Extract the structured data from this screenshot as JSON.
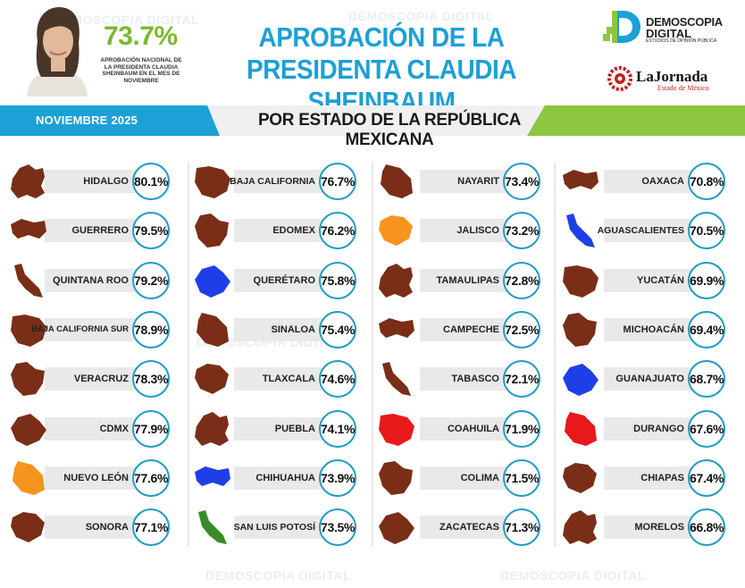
{
  "header": {
    "national_pct": "73.7%",
    "national_caption": "APROBACIÓN NACIONAL DE LA PRESIDENTA CLAUDIA SHEINBAUM EN EL MES DE NOVIEMBRE",
    "logo_line1": "DEMOSCOPIA",
    "logo_line2": "DIGITAL",
    "logo_line3": "ESTUDIOS DE OPINIÓN PÚBLICA",
    "logo2_name": "LaJornada",
    "logo2_sub": "Estado de México",
    "watermark": "DEMOSCOPIA DIGITAL"
  },
  "colors": {
    "title": "#1ca0d6",
    "accent_green": "#8cc63f",
    "accent_blue": "#1ca0d6",
    "circle_border": "#1e9ec2",
    "state_brown": "#7a2e17",
    "state_orange": "#f7941d",
    "state_blue": "#1f3fe6",
    "state_red": "#e8191b",
    "state_green": "#3a8a2a"
  },
  "chart_data": {
    "type": "table",
    "title": "APROBACIÓN DE LA PRESIDENTA CLAUDIA SHEINBAUM",
    "month": "NOVIEMBRE 2025",
    "subtitle": "POR ESTADO DE LA REPÚBLICA MEXICANA",
    "unit": "%",
    "columns": [
      [
        {
          "state": "HIDALGO",
          "label": "80.1%",
          "value": 80.1,
          "color": "brown"
        },
        {
          "state": "GUERRERO",
          "label": "79.5%",
          "value": 79.5,
          "color": "brown"
        },
        {
          "state": "QUINTANA ROO",
          "label": "79.2%",
          "value": 79.2,
          "color": "brown"
        },
        {
          "state": "BAJA CALIFORNIA SUR",
          "label": "78.9%",
          "value": 78.9,
          "color": "brown"
        },
        {
          "state": "VERACRUZ",
          "label": "78.3%",
          "value": 78.3,
          "color": "brown"
        },
        {
          "state": "CDMX",
          "label": "77.9%",
          "value": 77.9,
          "color": "brown"
        },
        {
          "state": "NUEVO LEÓN",
          "label": "77.6%",
          "value": 77.6,
          "color": "orange"
        },
        {
          "state": "SONORA",
          "label": "77.1%",
          "value": 77.1,
          "color": "brown"
        }
      ],
      [
        {
          "state": "BAJA CALIFORNIA",
          "label": "76.7%",
          "value": 76.7,
          "color": "brown"
        },
        {
          "state": "EDOMEX",
          "label": "76.2%",
          "value": 76.2,
          "color": "brown"
        },
        {
          "state": "QUERÉTARO",
          "label": "75.8%",
          "value": 75.8,
          "color": "blue"
        },
        {
          "state": "SINALOA",
          "label": "75.4%",
          "value": 75.4,
          "color": "brown"
        },
        {
          "state": "TLAXCALA",
          "label": "74.6%",
          "value": 74.6,
          "color": "brown"
        },
        {
          "state": "PUEBLA",
          "label": "74.1%",
          "value": 74.1,
          "color": "brown"
        },
        {
          "state": "CHIHUAHUA",
          "label": "73.9%",
          "value": 73.9,
          "color": "blue"
        },
        {
          "state": "SAN LUIS POTOSÍ",
          "label": "73.5%",
          "value": 73.5,
          "color": "green"
        }
      ],
      [
        {
          "state": "NAYARIT",
          "label": "73.4%",
          "value": 73.4,
          "color": "brown"
        },
        {
          "state": "JALISCO",
          "label": "73.2%",
          "value": 73.2,
          "color": "orange"
        },
        {
          "state": "TAMAULIPAS",
          "label": "72.8%",
          "value": 72.8,
          "color": "brown"
        },
        {
          "state": "CAMPECHE",
          "label": "72.5%",
          "value": 72.5,
          "color": "brown"
        },
        {
          "state": "TABASCO",
          "label": "72.1%",
          "value": 72.1,
          "color": "brown"
        },
        {
          "state": "COAHUILA",
          "label": "71.9%",
          "value": 71.9,
          "color": "red"
        },
        {
          "state": "COLIMA",
          "label": "71.5%",
          "value": 71.5,
          "color": "brown"
        },
        {
          "state": "ZACATECAS",
          "label": "71.3%",
          "value": 71.3,
          "color": "brown"
        }
      ],
      [
        {
          "state": "OAXACA",
          "label": "70.8%",
          "value": 70.8,
          "color": "brown"
        },
        {
          "state": "AGUASCALIENTES",
          "label": "70.5%",
          "value": 70.5,
          "color": "blue"
        },
        {
          "state": "YUCATÁN",
          "label": "69.9%",
          "value": 69.9,
          "color": "brown"
        },
        {
          "state": "MICHOACÁN",
          "label": "69.4%",
          "value": 69.4,
          "color": "brown"
        },
        {
          "state": "GUANAJUATO",
          "label": "68.7%",
          "value": 68.7,
          "color": "blue"
        },
        {
          "state": "DURANGO",
          "label": "67.6%",
          "value": 67.6,
          "color": "red"
        },
        {
          "state": "CHIAPAS",
          "label": "67.4%",
          "value": 67.4,
          "color": "brown"
        },
        {
          "state": "MORELOS",
          "label": "66.8%",
          "value": 66.8,
          "color": "brown"
        }
      ]
    ]
  }
}
